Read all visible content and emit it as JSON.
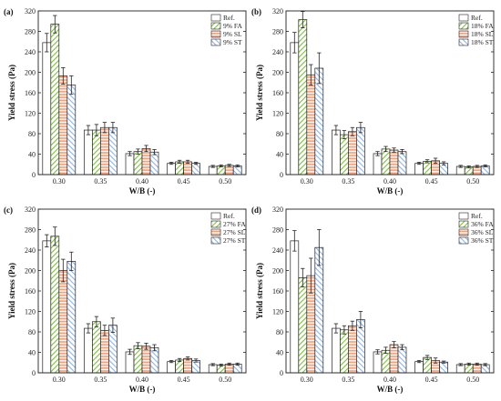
{
  "figure": {
    "ylabel": "Yield stress (Pa)",
    "xlabel": "W/B (-)",
    "categories": [
      "0.30",
      "0.35",
      "0.40",
      "0.45",
      "0.50"
    ],
    "yticks": [
      "0",
      "40",
      "80",
      "120",
      "160",
      "200",
      "240",
      "280",
      "320"
    ]
  },
  "colors": {
    "ref": "#ffffff",
    "fa": "#7fbf3f",
    "sl": "#f4a07a",
    "st": "#8eb4e6",
    "outline": "#222222"
  },
  "chart_data": [
    {
      "type": "bar",
      "panel": "(a)",
      "categories": [
        "0.30",
        "0.35",
        "0.40",
        "0.45",
        "0.50"
      ],
      "ylabel": "Yield stress (Pa)",
      "xlabel": "W/B (-)",
      "ylim": [
        0,
        320
      ],
      "legend": "top-right",
      "series": [
        {
          "name": "Ref.",
          "values": [
            258,
            87,
            41,
            22,
            16
          ],
          "errors": [
            18,
            9,
            4,
            2,
            2
          ]
        },
        {
          "name": "9% FA",
          "values": [
            294,
            87,
            45,
            25,
            17
          ],
          "errors": [
            17,
            11,
            5,
            3,
            2
          ]
        },
        {
          "name": "9% SL",
          "values": [
            193,
            92,
            51,
            25,
            18
          ],
          "errors": [
            16,
            10,
            6,
            3,
            2
          ]
        },
        {
          "name": "9% ST",
          "values": [
            175,
            92,
            44,
            22,
            17
          ],
          "errors": [
            18,
            10,
            5,
            2,
            2
          ]
        }
      ]
    },
    {
      "type": "bar",
      "panel": "(b)",
      "categories": [
        "0.30",
        "0.35",
        "0.40",
        "0.45",
        "0.50"
      ],
      "ylabel": "Yield stress (Pa)",
      "xlabel": "W/B (-)",
      "ylim": [
        0,
        320
      ],
      "legend": "top-right",
      "series": [
        {
          "name": "Ref.",
          "values": [
            258,
            87,
            41,
            22,
            16
          ],
          "errors": [
            20,
            9,
            4,
            2,
            2
          ]
        },
        {
          "name": "18% FA",
          "values": [
            303,
            78,
            50,
            26,
            15
          ],
          "errors": [
            16,
            8,
            5,
            3,
            2
          ]
        },
        {
          "name": "18% SL",
          "values": [
            195,
            84,
            48,
            27,
            16
          ],
          "errors": [
            20,
            8,
            4,
            5,
            2
          ]
        },
        {
          "name": "18% ST",
          "values": [
            208,
            92,
            45,
            22,
            17
          ],
          "errors": [
            30,
            10,
            4,
            3,
            2
          ]
        }
      ]
    },
    {
      "type": "bar",
      "panel": "(c)",
      "categories": [
        "0.30",
        "0.35",
        "0.40",
        "0.45",
        "0.50"
      ],
      "ylabel": "Yield stress (Pa)",
      "xlabel": "W/B (-)",
      "ylim": [
        0,
        320
      ],
      "legend": "top-right",
      "series": [
        {
          "name": "Ref.",
          "values": [
            258,
            87,
            41,
            22,
            16
          ],
          "errors": [
            12,
            9,
            5,
            2,
            2
          ]
        },
        {
          "name": "27% FA",
          "values": [
            267,
            100,
            53,
            25,
            15
          ],
          "errors": [
            18,
            10,
            6,
            3,
            2
          ]
        },
        {
          "name": "27% SL",
          "values": [
            200,
            83,
            52,
            28,
            17
          ],
          "errors": [
            22,
            10,
            6,
            3,
            2
          ]
        },
        {
          "name": "27% ST",
          "values": [
            218,
            93,
            49,
            24,
            17
          ],
          "errors": [
            18,
            14,
            6,
            3,
            2
          ]
        }
      ]
    },
    {
      "type": "bar",
      "panel": "(d)",
      "categories": [
        "0.30",
        "0.35",
        "0.40",
        "0.45",
        "0.50"
      ],
      "ylabel": "Yield stress (Pa)",
      "xlabel": "W/B (-)",
      "ylim": [
        0,
        320
      ],
      "legend": "top-right",
      "series": [
        {
          "name": "Ref.",
          "values": [
            258,
            87,
            41,
            22,
            16
          ],
          "errors": [
            20,
            9,
            4,
            2,
            2
          ]
        },
        {
          "name": "36% FA",
          "values": [
            186,
            84,
            44,
            30,
            17
          ],
          "errors": [
            18,
            8,
            6,
            4,
            2
          ]
        },
        {
          "name": "36% SL",
          "values": [
            190,
            92,
            55,
            24,
            17
          ],
          "errors": [
            34,
            9,
            6,
            5,
            2
          ]
        },
        {
          "name": "36% ST",
          "values": [
            245,
            104,
            50,
            21,
            16
          ],
          "errors": [
            35,
            16,
            5,
            2,
            2
          ]
        }
      ]
    }
  ]
}
